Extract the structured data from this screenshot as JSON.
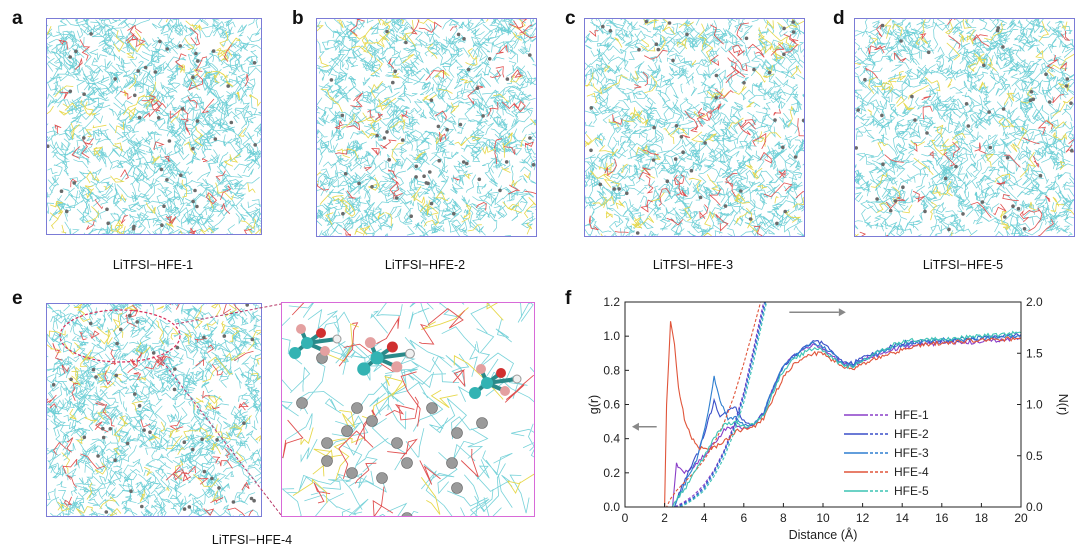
{
  "panels": {
    "a": {
      "letter": "a",
      "caption": "LiTFSI−HFE-1"
    },
    "b": {
      "letter": "b",
      "caption": "LiTFSI−HFE-2"
    },
    "c": {
      "letter": "c",
      "caption": "LiTFSI−HFE-3"
    },
    "d": {
      "letter": "d",
      "caption": "LiTFSI−HFE-5"
    },
    "e": {
      "letter": "e",
      "caption": "LiTFSI−HFE-4"
    },
    "f": {
      "letter": "f"
    }
  },
  "colors": {
    "cyan": "#55c7cf",
    "yellow": "#e7d84c",
    "red": "#e05050",
    "gray": "#888888",
    "box": "#7b7bd6",
    "zoom_box": "#d86ad8",
    "HFE-1": "#8a3fc8",
    "HFE-2": "#3a4fc8",
    "HFE-3": "#2f7fd0",
    "HFE-4": "#e0553a",
    "HFE-5": "#3cc4b4"
  },
  "chart_data": {
    "type": "line",
    "xlabel": "Distance (Å)",
    "ylabel_left": "g(r)",
    "ylabel_right": "N(r)",
    "xlim": [
      0,
      20
    ],
    "ylim_left": [
      0,
      1.2
    ],
    "ylim_right": [
      0,
      2.0
    ],
    "xticks": [
      "0",
      "2",
      "4",
      "6",
      "8",
      "10",
      "12",
      "14",
      "16",
      "18",
      "20"
    ],
    "yticks_left": [
      "0.0",
      "0.2",
      "0.4",
      "0.6",
      "0.8",
      "1.0",
      "1.2"
    ],
    "yticks_right": [
      "0.0",
      "0.5",
      "1.0",
      "1.5",
      "2.0"
    ],
    "legend_position": "lower-right",
    "annotations": [
      "left arrow: g(r) axis",
      "right arrow: N(r) axis"
    ],
    "series": [
      {
        "name": "HFE-1",
        "gr": [
          [
            0,
            0
          ],
          [
            2.4,
            0
          ],
          [
            2.6,
            0.25
          ],
          [
            3,
            0.2
          ],
          [
            3.5,
            0.24
          ],
          [
            4,
            0.3
          ],
          [
            4.5,
            0.37
          ],
          [
            5,
            0.45
          ],
          [
            5.5,
            0.48
          ],
          [
            6,
            0.46
          ],
          [
            6.5,
            0.48
          ],
          [
            7,
            0.55
          ],
          [
            7.5,
            0.7
          ],
          [
            8,
            0.82
          ],
          [
            8.5,
            0.88
          ],
          [
            9,
            0.92
          ],
          [
            9.5,
            0.95
          ],
          [
            10,
            0.93
          ],
          [
            10.5,
            0.88
          ],
          [
            11,
            0.84
          ],
          [
            11.5,
            0.83
          ],
          [
            12,
            0.86
          ],
          [
            13,
            0.9
          ],
          [
            14,
            0.94
          ],
          [
            15,
            0.95
          ],
          [
            16,
            0.96
          ],
          [
            17,
            0.96
          ],
          [
            18,
            0.97
          ],
          [
            19,
            0.98
          ],
          [
            20,
            0.99
          ]
        ],
        "nr": [
          [
            0,
            0
          ],
          [
            2.5,
            0
          ],
          [
            3,
            0.05
          ],
          [
            3.5,
            0.12
          ],
          [
            4,
            0.22
          ],
          [
            4.5,
            0.36
          ],
          [
            5,
            0.55
          ],
          [
            5.5,
            0.8
          ],
          [
            6,
            1.12
          ],
          [
            6.5,
            1.55
          ],
          [
            7,
            2.0
          ]
        ]
      },
      {
        "name": "HFE-2",
        "gr": [
          [
            0,
            0
          ],
          [
            2.5,
            0
          ],
          [
            2.8,
            0.1
          ],
          [
            3.2,
            0.2
          ],
          [
            3.7,
            0.32
          ],
          [
            4.2,
            0.5
          ],
          [
            4.5,
            0.62
          ],
          [
            4.8,
            0.52
          ],
          [
            5.2,
            0.56
          ],
          [
            5.6,
            0.58
          ],
          [
            6,
            0.5
          ],
          [
            6.5,
            0.48
          ],
          [
            7,
            0.55
          ],
          [
            7.5,
            0.7
          ],
          [
            8,
            0.82
          ],
          [
            8.5,
            0.88
          ],
          [
            9,
            0.93
          ],
          [
            9.5,
            0.97
          ],
          [
            10,
            0.96
          ],
          [
            10.5,
            0.9
          ],
          [
            11,
            0.85
          ],
          [
            11.5,
            0.84
          ],
          [
            12,
            0.87
          ],
          [
            13,
            0.92
          ],
          [
            14,
            0.96
          ],
          [
            15,
            0.97
          ],
          [
            16,
            0.97
          ],
          [
            17,
            0.98
          ],
          [
            18,
            0.99
          ],
          [
            19,
            1.0
          ],
          [
            20,
            1.01
          ]
        ],
        "nr": [
          [
            0,
            0
          ],
          [
            2.6,
            0
          ],
          [
            3,
            0.04
          ],
          [
            3.5,
            0.1
          ],
          [
            4,
            0.2
          ],
          [
            4.5,
            0.35
          ],
          [
            5,
            0.54
          ],
          [
            5.5,
            0.78
          ],
          [
            6,
            1.1
          ],
          [
            6.5,
            1.52
          ],
          [
            7.05,
            2.0
          ]
        ]
      },
      {
        "name": "HFE-3",
        "gr": [
          [
            0,
            0
          ],
          [
            2.5,
            0
          ],
          [
            2.8,
            0.08
          ],
          [
            3.2,
            0.18
          ],
          [
            3.7,
            0.3
          ],
          [
            4.2,
            0.55
          ],
          [
            4.5,
            0.76
          ],
          [
            4.8,
            0.62
          ],
          [
            5.2,
            0.52
          ],
          [
            5.6,
            0.52
          ],
          [
            6,
            0.48
          ],
          [
            6.5,
            0.48
          ],
          [
            7,
            0.55
          ],
          [
            7.5,
            0.7
          ],
          [
            8,
            0.82
          ],
          [
            8.5,
            0.88
          ],
          [
            9,
            0.92
          ],
          [
            9.5,
            0.96
          ],
          [
            10,
            0.94
          ],
          [
            10.5,
            0.89
          ],
          [
            11,
            0.84
          ],
          [
            11.5,
            0.83
          ],
          [
            12,
            0.86
          ],
          [
            13,
            0.91
          ],
          [
            14,
            0.95
          ],
          [
            15,
            0.97
          ],
          [
            16,
            0.98
          ],
          [
            17,
            0.98
          ],
          [
            18,
            0.99
          ],
          [
            19,
            1.0
          ],
          [
            20,
            1.0
          ]
        ],
        "nr": [
          [
            0,
            0
          ],
          [
            2.7,
            0
          ],
          [
            3,
            0.03
          ],
          [
            3.5,
            0.09
          ],
          [
            4,
            0.18
          ],
          [
            4.5,
            0.33
          ],
          [
            5,
            0.52
          ],
          [
            5.5,
            0.76
          ],
          [
            6,
            1.07
          ],
          [
            6.5,
            1.48
          ],
          [
            7.1,
            2.0
          ]
        ]
      },
      {
        "name": "HFE-4",
        "gr": [
          [
            0,
            0
          ],
          [
            2.0,
            0
          ],
          [
            2.1,
            0.6
          ],
          [
            2.3,
            1.09
          ],
          [
            2.5,
            0.95
          ],
          [
            2.7,
            0.7
          ],
          [
            3,
            0.52
          ],
          [
            3.3,
            0.42
          ],
          [
            3.7,
            0.35
          ],
          [
            4.2,
            0.33
          ],
          [
            4.7,
            0.36
          ],
          [
            5.2,
            0.4
          ],
          [
            5.6,
            0.44
          ],
          [
            6,
            0.46
          ],
          [
            6.5,
            0.47
          ],
          [
            7,
            0.52
          ],
          [
            7.5,
            0.64
          ],
          [
            8,
            0.76
          ],
          [
            8.5,
            0.83
          ],
          [
            9,
            0.87
          ],
          [
            9.5,
            0.9
          ],
          [
            10,
            0.9
          ],
          [
            10.5,
            0.86
          ],
          [
            11,
            0.82
          ],
          [
            11.5,
            0.81
          ],
          [
            12,
            0.84
          ],
          [
            13,
            0.88
          ],
          [
            14,
            0.92
          ],
          [
            15,
            0.95
          ],
          [
            16,
            0.96
          ],
          [
            17,
            0.97
          ],
          [
            18,
            0.98
          ],
          [
            19,
            0.98
          ],
          [
            20,
            0.99
          ]
        ],
        "nr": [
          [
            0,
            0
          ],
          [
            2.1,
            0
          ],
          [
            2.3,
            0.08
          ],
          [
            2.6,
            0.16
          ],
          [
            3,
            0.24
          ],
          [
            3.5,
            0.34
          ],
          [
            4,
            0.46
          ],
          [
            4.5,
            0.62
          ],
          [
            5,
            0.82
          ],
          [
            5.5,
            1.08
          ],
          [
            6,
            1.4
          ],
          [
            6.5,
            1.75
          ],
          [
            6.85,
            2.0
          ]
        ]
      },
      {
        "name": "HFE-5",
        "gr": [
          [
            0,
            0
          ],
          [
            2.4,
            0
          ],
          [
            2.6,
            0.05
          ],
          [
            3,
            0.1
          ],
          [
            3.5,
            0.2
          ],
          [
            4,
            0.3
          ],
          [
            4.5,
            0.4
          ],
          [
            5,
            0.48
          ],
          [
            5.5,
            0.5
          ],
          [
            6,
            0.47
          ],
          [
            6.5,
            0.48
          ],
          [
            7,
            0.54
          ],
          [
            7.5,
            0.68
          ],
          [
            8,
            0.8
          ],
          [
            8.5,
            0.86
          ],
          [
            9,
            0.9
          ],
          [
            9.5,
            0.93
          ],
          [
            10,
            0.92
          ],
          [
            10.5,
            0.87
          ],
          [
            11,
            0.83
          ],
          [
            11.5,
            0.82
          ],
          [
            12,
            0.86
          ],
          [
            13,
            0.92
          ],
          [
            14,
            0.97
          ],
          [
            15,
            0.98
          ],
          [
            16,
            0.98
          ],
          [
            17,
            0.99
          ],
          [
            18,
            1.0
          ],
          [
            19,
            1.01
          ],
          [
            20,
            1.02
          ]
        ],
        "nr": [
          [
            0,
            0
          ],
          [
            2.8,
            0
          ],
          [
            3.1,
            0.03
          ],
          [
            3.5,
            0.08
          ],
          [
            4,
            0.16
          ],
          [
            4.5,
            0.3
          ],
          [
            5,
            0.48
          ],
          [
            5.5,
            0.72
          ],
          [
            6,
            1.02
          ],
          [
            6.5,
            1.42
          ],
          [
            7.15,
            2.0
          ]
        ]
      }
    ]
  }
}
